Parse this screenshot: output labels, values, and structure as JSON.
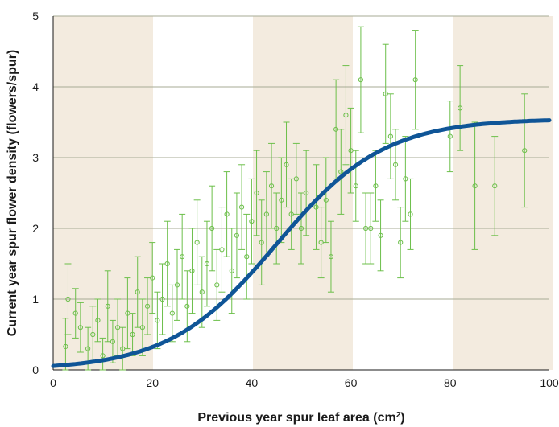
{
  "chart_data": {
    "type": "scatter",
    "title": "",
    "xlabel": "Previous year spur leaf area (cm",
    "xlabel_superscript": "2",
    "xlabel_suffix": ")",
    "ylabel": "Current year spur flower density (flowers/spur)",
    "xlim": [
      0,
      100
    ],
    "ylim": [
      0,
      5
    ],
    "x_ticks": [
      "0",
      "20",
      "40",
      "60",
      "80",
      "100"
    ],
    "y_ticks": [
      "0",
      "1",
      "2",
      "3",
      "4",
      "5"
    ],
    "grid": "horizontal",
    "background_bands": "alternating beige and white, every 20 cm2",
    "colors": {
      "points": "#6cbf4a",
      "fit_curve": "#0f5597",
      "band_shaded": "#f3ebdf",
      "gridline": "#a7ab96"
    },
    "series": [
      {
        "kind": "points_with_error_bars",
        "points": [
          {
            "x": 2.5,
            "y": 0.33,
            "err": 0.4
          },
          {
            "x": 3.0,
            "y": 1.0,
            "err": 0.5
          },
          {
            "x": 4.5,
            "y": 0.8,
            "err": 0.35
          },
          {
            "x": 5.5,
            "y": 0.6,
            "err": 0.35
          },
          {
            "x": 7.0,
            "y": 0.3,
            "err": 0.3
          },
          {
            "x": 8.0,
            "y": 0.5,
            "err": 0.4
          },
          {
            "x": 9.0,
            "y": 0.7,
            "err": 0.3
          },
          {
            "x": 10.0,
            "y": 0.2,
            "err": 0.25
          },
          {
            "x": 11.0,
            "y": 0.9,
            "err": 0.5
          },
          {
            "x": 12.0,
            "y": 0.4,
            "err": 0.3
          },
          {
            "x": 13.0,
            "y": 0.6,
            "err": 0.4
          },
          {
            "x": 14.0,
            "y": 0.3,
            "err": 0.3
          },
          {
            "x": 15.0,
            "y": 0.8,
            "err": 0.5
          },
          {
            "x": 16.0,
            "y": 0.5,
            "err": 0.3
          },
          {
            "x": 17.0,
            "y": 1.1,
            "err": 0.5
          },
          {
            "x": 18.0,
            "y": 0.6,
            "err": 0.4
          },
          {
            "x": 19.0,
            "y": 0.9,
            "err": 0.4
          },
          {
            "x": 20.0,
            "y": 1.3,
            "err": 0.5
          },
          {
            "x": 21.0,
            "y": 0.7,
            "err": 0.4
          },
          {
            "x": 22.0,
            "y": 1.0,
            "err": 0.5
          },
          {
            "x": 23.0,
            "y": 1.5,
            "err": 0.6
          },
          {
            "x": 24.0,
            "y": 0.8,
            "err": 0.4
          },
          {
            "x": 25.0,
            "y": 1.2,
            "err": 0.5
          },
          {
            "x": 26.0,
            "y": 1.6,
            "err": 0.6
          },
          {
            "x": 27.0,
            "y": 0.9,
            "err": 0.5
          },
          {
            "x": 28.0,
            "y": 1.4,
            "err": 0.6
          },
          {
            "x": 29.0,
            "y": 1.8,
            "err": 0.6
          },
          {
            "x": 30.0,
            "y": 1.1,
            "err": 0.5
          },
          {
            "x": 31.0,
            "y": 1.5,
            "err": 0.6
          },
          {
            "x": 32.0,
            "y": 2.0,
            "err": 0.6
          },
          {
            "x": 33.0,
            "y": 1.2,
            "err": 0.5
          },
          {
            "x": 34.0,
            "y": 1.7,
            "err": 0.6
          },
          {
            "x": 35.0,
            "y": 2.2,
            "err": 0.6
          },
          {
            "x": 36.0,
            "y": 1.4,
            "err": 0.6
          },
          {
            "x": 37.0,
            "y": 1.9,
            "err": 0.6
          },
          {
            "x": 38.0,
            "y": 2.3,
            "err": 0.6
          },
          {
            "x": 39.0,
            "y": 1.6,
            "err": 0.6
          },
          {
            "x": 40.0,
            "y": 2.1,
            "err": 0.6
          },
          {
            "x": 41.0,
            "y": 2.5,
            "err": 0.6
          },
          {
            "x": 42.0,
            "y": 1.8,
            "err": 0.6
          },
          {
            "x": 43.0,
            "y": 2.2,
            "err": 0.6
          },
          {
            "x": 44.0,
            "y": 2.6,
            "err": 0.6
          },
          {
            "x": 45.0,
            "y": 2.0,
            "err": 0.5
          },
          {
            "x": 46.0,
            "y": 2.4,
            "err": 0.6
          },
          {
            "x": 47.0,
            "y": 2.9,
            "err": 0.6
          },
          {
            "x": 48.0,
            "y": 2.2,
            "err": 0.5
          },
          {
            "x": 49.0,
            "y": 2.7,
            "err": 0.5
          },
          {
            "x": 50.0,
            "y": 2.0,
            "err": 0.5
          },
          {
            "x": 51.0,
            "y": 2.5,
            "err": 0.6
          },
          {
            "x": 53.0,
            "y": 2.3,
            "err": 0.6
          },
          {
            "x": 54.0,
            "y": 1.8,
            "err": 0.5
          },
          {
            "x": 55.0,
            "y": 2.4,
            "err": 0.6
          },
          {
            "x": 56.0,
            "y": 1.6,
            "err": 0.5
          },
          {
            "x": 57.0,
            "y": 3.4,
            "err": 0.7
          },
          {
            "x": 58.0,
            "y": 2.8,
            "err": 0.6
          },
          {
            "x": 59.0,
            "y": 3.6,
            "err": 0.7
          },
          {
            "x": 60.0,
            "y": 3.1,
            "err": 0.6
          },
          {
            "x": 61.0,
            "y": 2.6,
            "err": 0.5
          },
          {
            "x": 62.0,
            "y": 4.1,
            "err": 0.75
          },
          {
            "x": 63.0,
            "y": 2.0,
            "err": 0.5
          },
          {
            "x": 64.0,
            "y": 2.0,
            "err": 0.5
          },
          {
            "x": 65.0,
            "y": 2.6,
            "err": 0.5
          },
          {
            "x": 66.0,
            "y": 1.9,
            "err": 0.5
          },
          {
            "x": 67.0,
            "y": 3.9,
            "err": 0.7
          },
          {
            "x": 68.0,
            "y": 3.3,
            "err": 0.6
          },
          {
            "x": 69.0,
            "y": 2.9,
            "err": 0.5
          },
          {
            "x": 70.0,
            "y": 1.8,
            "err": 0.5
          },
          {
            "x": 71.0,
            "y": 2.7,
            "err": 0.6
          },
          {
            "x": 72.0,
            "y": 2.2,
            "err": 0.5
          },
          {
            "x": 73.0,
            "y": 4.1,
            "err": 0.7
          },
          {
            "x": 80.0,
            "y": 3.3,
            "err": 0.5
          },
          {
            "x": 82.0,
            "y": 3.7,
            "err": 0.6
          },
          {
            "x": 85.0,
            "y": 2.6,
            "err": 0.9
          },
          {
            "x": 89.0,
            "y": 2.6,
            "err": 0.7
          },
          {
            "x": 95.0,
            "y": 3.1,
            "err": 0.8
          }
        ]
      },
      {
        "kind": "fitted_curve",
        "model": "logistic",
        "params": {
          "L": 3.55,
          "k": 0.092,
          "x0": 45.0
        }
      }
    ]
  }
}
